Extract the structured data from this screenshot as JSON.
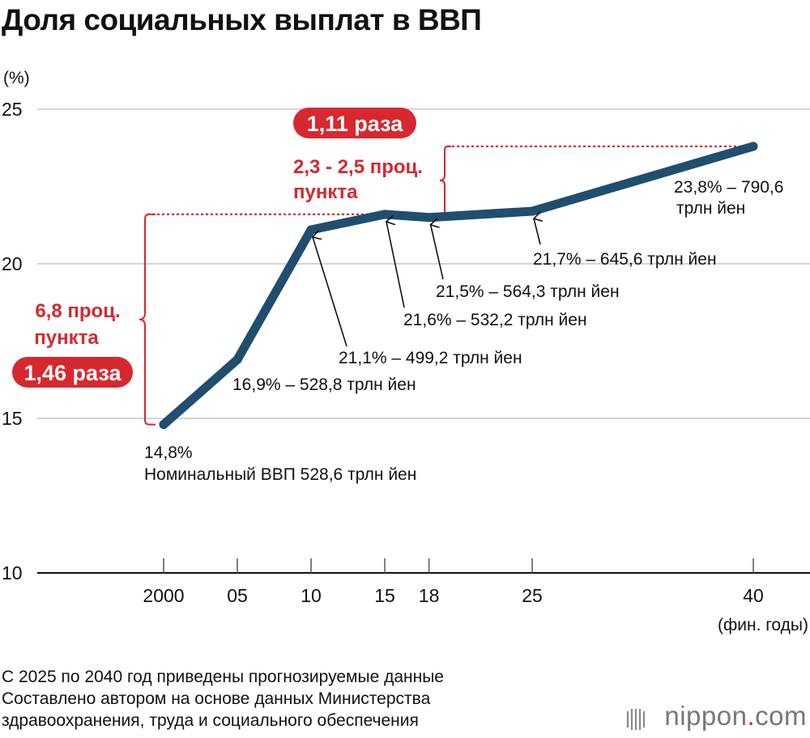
{
  "title": "Доля социальных выплат в ВВП",
  "colors": {
    "line": "#1f4e6e",
    "accent": "#d7282f",
    "grid": "#bbbbbb",
    "text": "#111111"
  },
  "chart_data": {
    "type": "line",
    "title": "Доля социальных выплат в ВВП",
    "ylabel": "(%)",
    "xlabel": "(фин. годы)",
    "ylim": [
      10,
      25
    ],
    "yticks": [
      10,
      15,
      20,
      25
    ],
    "grid": true,
    "x": [
      2000,
      2005,
      2010,
      2015,
      2018,
      2025,
      2040
    ],
    "xtick_labels": [
      "2000",
      "05",
      "10",
      "15",
      "18",
      "25",
      "40"
    ],
    "series": [
      {
        "name": "Доля социальных выплат в ВВП",
        "values": [
          14.8,
          16.9,
          21.1,
          21.6,
          21.5,
          21.7,
          23.8
        ]
      }
    ],
    "point_labels": [
      {
        "line1": "14,8%",
        "line2": "Номинальный ВВП 528,6 трлн йен"
      },
      {
        "line1": "16,9% – 528,8 трлн йен"
      },
      {
        "line1": "21,1% – 499,2 трлн йен"
      },
      {
        "line1": "21,6% – 532,2 трлн йен"
      },
      {
        "line1": "21,5% – 564,3 трлн йен"
      },
      {
        "line1": "21,7% – 645,6 трлн йен"
      },
      {
        "line1": "23,8% – 790,6",
        "line2": "трлн йен"
      }
    ],
    "annotations": [
      {
        "from": 14.8,
        "to": 21.6,
        "text1": "6,8 проц.",
        "text2": "пункта",
        "badge": "1,46 раза"
      },
      {
        "from": 21.6,
        "to": 23.8,
        "text1": "2,3 - 2,5 проц.",
        "text2": "пункта",
        "badge": "1,11 раза"
      }
    ]
  },
  "notes": [
    "С 2025 по 2040 год приведены прогнозируемые данные",
    "Составлено автором на основе данных Министерства",
    "здравоохранения, труда и социального обеспечения"
  ],
  "logo": {
    "text": "nippon",
    "dot": ".",
    "suffix": "com"
  }
}
